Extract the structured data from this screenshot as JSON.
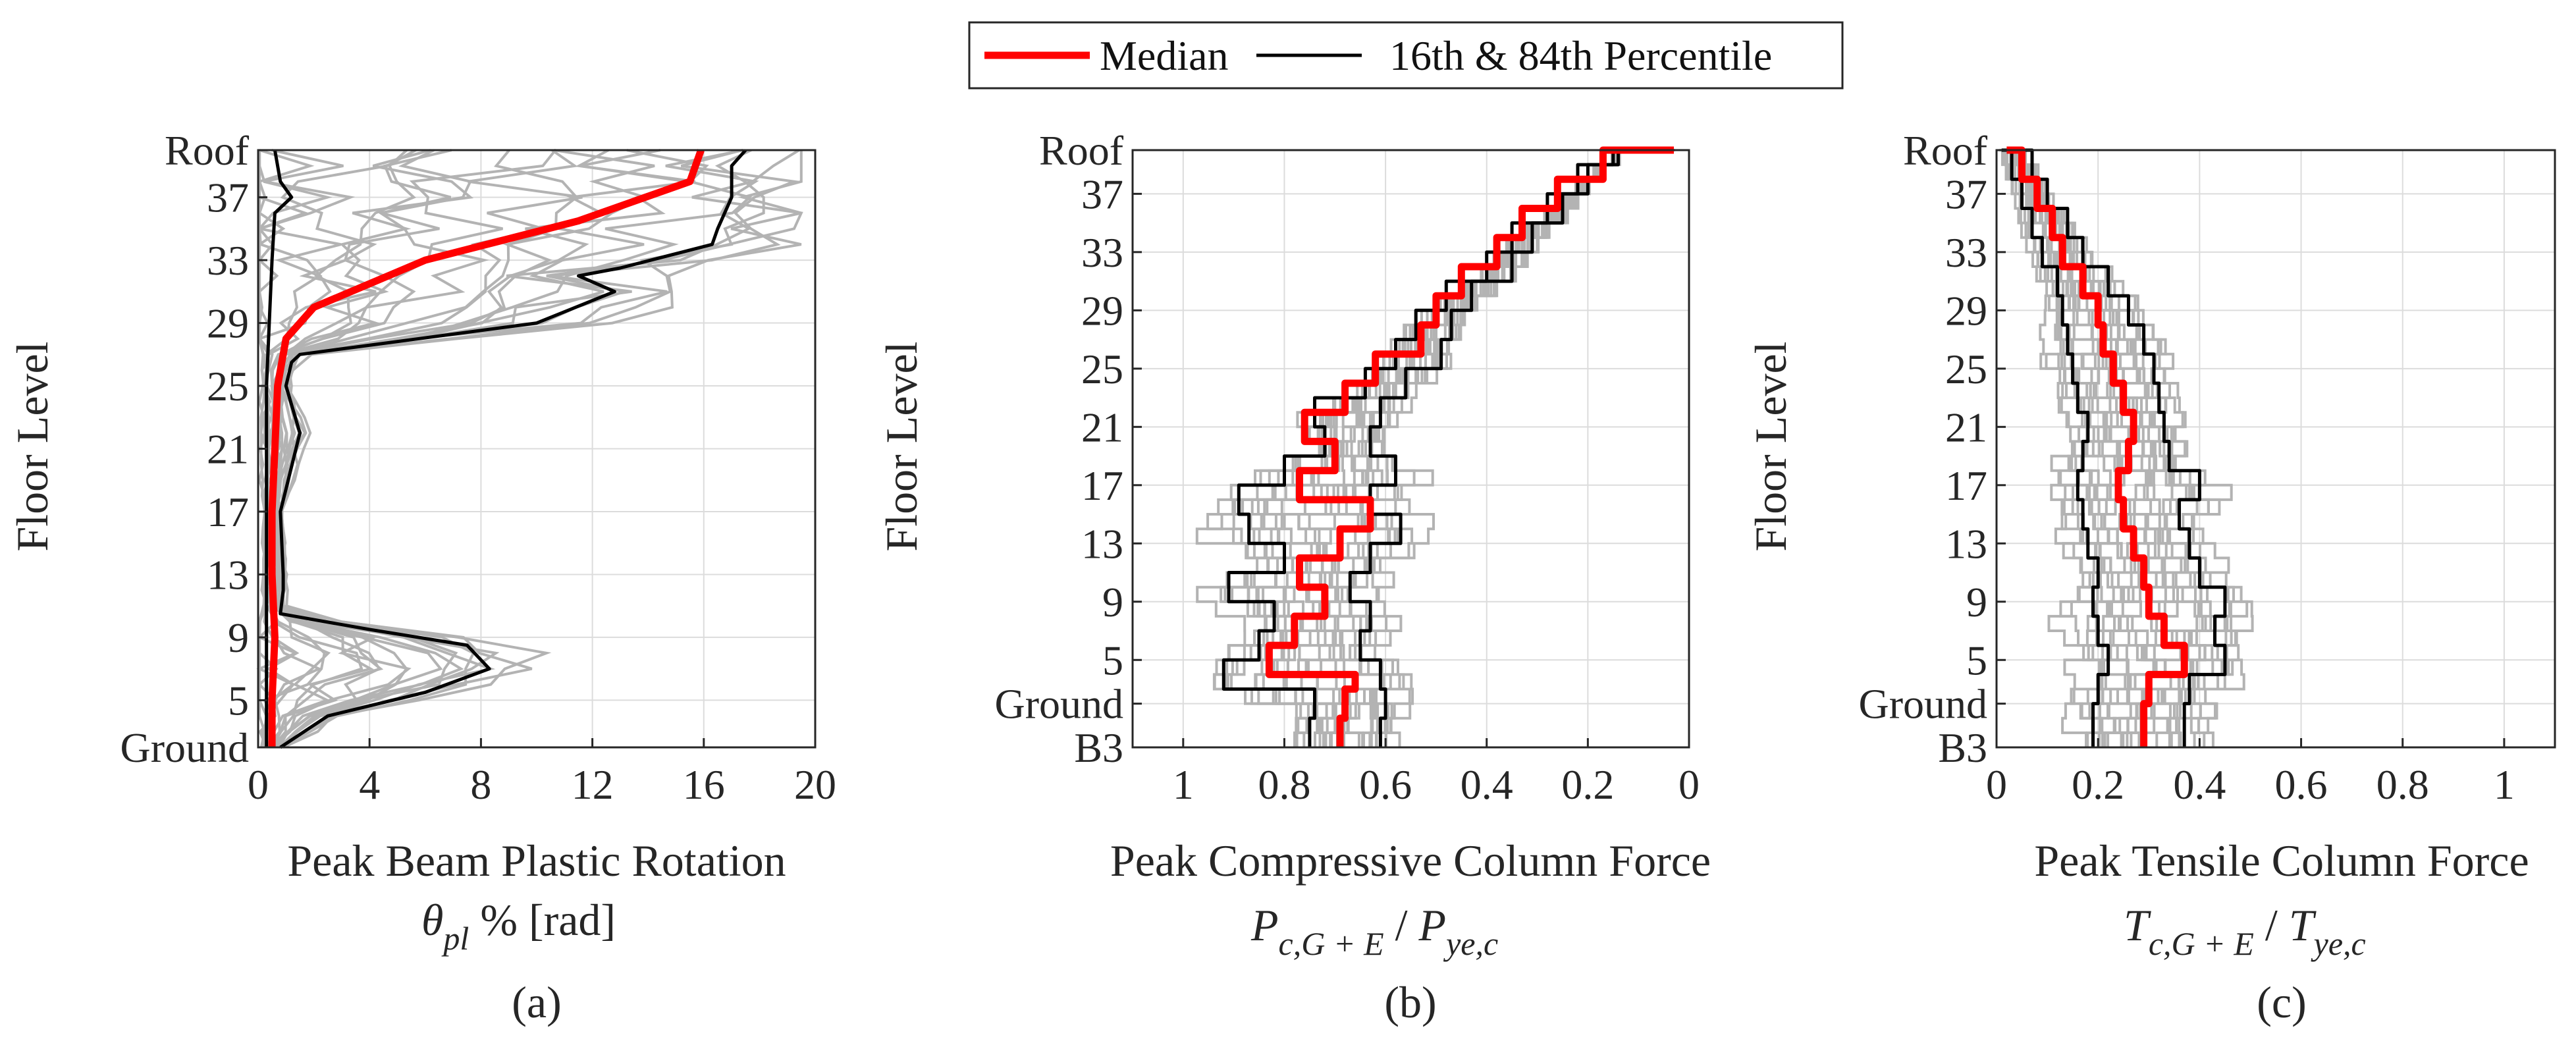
{
  "legend": {
    "median_label": "Median",
    "percentile_label": "16th & 84th Percentile"
  },
  "colors": {
    "median": "#ff0000",
    "percentile": "#000000",
    "records": "#b3b3b3",
    "grid": "#dcdcdc",
    "axes": "#262626"
  },
  "chart_data": [
    {
      "type": "line",
      "panel_label": "(a)",
      "xlabel": "Peak Beam Plastic Rotation",
      "xlabel_math": "θ pl % [rad]",
      "ylabel": "Floor Level",
      "xlim": [
        0,
        20
      ],
      "x_ticks": [
        0,
        4,
        8,
        12,
        16,
        20
      ],
      "x_tick_labels": [
        "0",
        "4",
        "8",
        "12",
        "16",
        "20"
      ],
      "ylim": [
        2,
        40
      ],
      "y_ticks": [
        2,
        5,
        9,
        13,
        17,
        21,
        25,
        29,
        33,
        37,
        40
      ],
      "y_tick_labels": [
        "Ground",
        "5",
        "9",
        "13",
        "17",
        "21",
        "25",
        "29",
        "33",
        "37",
        "Roof"
      ],
      "grid": true,
      "series": [
        {
          "name": "Median",
          "role": "median",
          "points": [
            [
              0.5,
              2
            ],
            [
              0.5,
              5
            ],
            [
              0.6,
              9
            ],
            [
              0.5,
              13
            ],
            [
              0.5,
              17
            ],
            [
              0.6,
              21
            ],
            [
              0.7,
              25
            ],
            [
              1.0,
              28
            ],
            [
              2.0,
              30
            ],
            [
              6.0,
              33
            ],
            [
              11.5,
              35.5
            ],
            [
              15.5,
              38
            ],
            [
              15.9,
              40
            ]
          ]
        },
        {
          "name": "16th & 84th Percentile",
          "role": "p16",
          "points": [
            [
              0.3,
              2
            ],
            [
              0.3,
              5
            ],
            [
              0.3,
              9
            ],
            [
              0.3,
              13
            ],
            [
              0.3,
              17
            ],
            [
              0.3,
              21
            ],
            [
              0.3,
              25
            ],
            [
              0.4,
              29
            ],
            [
              0.5,
              33
            ],
            [
              0.6,
              36
            ],
            [
              1.2,
              37
            ],
            [
              0.8,
              38
            ],
            [
              0.6,
              40
            ]
          ]
        },
        {
          "name": "16th & 84th Percentile",
          "role": "p84",
          "points": [
            [
              0.8,
              2
            ],
            [
              2.5,
              4
            ],
            [
              6.0,
              5.5
            ],
            [
              8.3,
              7
            ],
            [
              7.5,
              8.5
            ],
            [
              4.0,
              9.5
            ],
            [
              0.8,
              10.5
            ],
            [
              0.9,
              12
            ],
            [
              0.9,
              13
            ],
            [
              0.8,
              17
            ],
            [
              1.5,
              22
            ],
            [
              1.0,
              25
            ],
            [
              1.2,
              26.5
            ],
            [
              1.5,
              27
            ],
            [
              10.0,
              29
            ],
            [
              12.8,
              31
            ],
            [
              11.5,
              32
            ],
            [
              13.0,
              32.5
            ],
            [
              16.3,
              34
            ],
            [
              16.5,
              35
            ],
            [
              17.0,
              37
            ],
            [
              17.0,
              39
            ],
            [
              17.5,
              40
            ]
          ]
        }
      ]
    },
    {
      "type": "line",
      "panel_label": "(b)",
      "xlabel": "Peak Compressive Column Force",
      "xlabel_math": "P c,G + E / P ye,c",
      "ylabel": "Floor Level",
      "xlim": [
        1.1,
        0
      ],
      "x_ticks": [
        1,
        0.8,
        0.6,
        0.4,
        0.2,
        0
      ],
      "x_tick_labels": [
        "1",
        "0.8",
        "0.6",
        "0.4",
        "0.2",
        "0"
      ],
      "ylim": [
        -1,
        40
      ],
      "y_ticks": [
        -1,
        2,
        5,
        9,
        13,
        17,
        21,
        25,
        29,
        33,
        37,
        40
      ],
      "y_tick_labels": [
        "B3",
        "Ground",
        "5",
        "9",
        "13",
        "17",
        "21",
        "25",
        "29",
        "33",
        "37",
        "Roof"
      ],
      "grid": true,
      "series": [
        {
          "name": "Median",
          "role": "median",
          "points": [
            [
              0.69,
              -1
            ],
            [
              0.68,
              1
            ],
            [
              0.66,
              3
            ],
            [
              0.83,
              4
            ],
            [
              0.78,
              6
            ],
            [
              0.72,
              8
            ],
            [
              0.77,
              10
            ],
            [
              0.69,
              12
            ],
            [
              0.63,
              14
            ],
            [
              0.77,
              16
            ],
            [
              0.7,
              18
            ],
            [
              0.76,
              20
            ],
            [
              0.68,
              22
            ],
            [
              0.62,
              24
            ],
            [
              0.53,
              26
            ],
            [
              0.5,
              28
            ],
            [
              0.45,
              30
            ],
            [
              0.38,
              32
            ],
            [
              0.33,
              34
            ],
            [
              0.26,
              36
            ],
            [
              0.17,
              38
            ],
            [
              0.03,
              40
            ]
          ]
        },
        {
          "name": "16th & 84th Percentile",
          "role": "p16",
          "points": [
            [
              0.75,
              -1
            ],
            [
              0.74,
              1
            ],
            [
              0.92,
              3
            ],
            [
              0.85,
              5
            ],
            [
              0.82,
              7
            ],
            [
              0.91,
              9
            ],
            [
              0.8,
              11
            ],
            [
              0.87,
              13
            ],
            [
              0.89,
              15
            ],
            [
              0.8,
              17
            ],
            [
              0.72,
              19
            ],
            [
              0.74,
              21
            ],
            [
              0.64,
              23
            ],
            [
              0.58,
              25
            ],
            [
              0.54,
              27
            ],
            [
              0.48,
              29
            ],
            [
              0.4,
              31
            ],
            [
              0.35,
              33
            ],
            [
              0.28,
              35
            ],
            [
              0.22,
              37
            ],
            [
              0.15,
              39
            ],
            [
              0.04,
              40
            ]
          ]
        },
        {
          "name": "16th & 84th Percentile",
          "role": "p84",
          "points": [
            [
              0.61,
              -1
            ],
            [
              0.6,
              1
            ],
            [
              0.61,
              3
            ],
            [
              0.65,
              5
            ],
            [
              0.63,
              7
            ],
            [
              0.67,
              9
            ],
            [
              0.63,
              11
            ],
            [
              0.57,
              13
            ],
            [
              0.63,
              15
            ],
            [
              0.58,
              17
            ],
            [
              0.63,
              19
            ],
            [
              0.61,
              21
            ],
            [
              0.56,
              23
            ],
            [
              0.49,
              25
            ],
            [
              0.47,
              27
            ],
            [
              0.43,
              29
            ],
            [
              0.35,
              31
            ],
            [
              0.31,
              33
            ],
            [
              0.25,
              35
            ],
            [
              0.2,
              37
            ],
            [
              0.14,
              39
            ],
            [
              0.03,
              40
            ]
          ]
        }
      ]
    },
    {
      "type": "line",
      "panel_label": "(c)",
      "xlabel": "Peak Tensile Column Force",
      "xlabel_math": "T c,G + E / T ye,c",
      "ylabel": "Floor Level",
      "xlim": [
        0,
        1.1
      ],
      "x_ticks": [
        0,
        0.2,
        0.4,
        0.6,
        0.8,
        1
      ],
      "x_tick_labels": [
        "0",
        "0.2",
        "0.4",
        "0.6",
        "0.8",
        "1"
      ],
      "ylim": [
        -1,
        40
      ],
      "y_ticks": [
        -1,
        2,
        5,
        9,
        13,
        17,
        21,
        25,
        29,
        33,
        37,
        40
      ],
      "y_tick_labels": [
        "B3",
        "Ground",
        "5",
        "9",
        "13",
        "17",
        "21",
        "25",
        "29",
        "33",
        "37",
        "Roof"
      ],
      "grid": true,
      "series": [
        {
          "name": "Median",
          "role": "median",
          "points": [
            [
              0.29,
              -1
            ],
            [
              0.3,
              2
            ],
            [
              0.37,
              4
            ],
            [
              0.33,
              6
            ],
            [
              0.3,
              8
            ],
            [
              0.29,
              10
            ],
            [
              0.27,
              12
            ],
            [
              0.25,
              14
            ],
            [
              0.24,
              16
            ],
            [
              0.26,
              18
            ],
            [
              0.27,
              20
            ],
            [
              0.25,
              22
            ],
            [
              0.23,
              24
            ],
            [
              0.21,
              26
            ],
            [
              0.2,
              28
            ],
            [
              0.17,
              30
            ],
            [
              0.13,
              32
            ],
            [
              0.11,
              34
            ],
            [
              0.08,
              36
            ],
            [
              0.05,
              38
            ],
            [
              0.02,
              40
            ]
          ]
        },
        {
          "name": "16th & 84th Percentile",
          "role": "p16",
          "points": [
            [
              0.19,
              -1
            ],
            [
              0.2,
              2
            ],
            [
              0.22,
              4
            ],
            [
              0.2,
              6
            ],
            [
              0.19,
              8
            ],
            [
              0.2,
              10
            ],
            [
              0.18,
              12
            ],
            [
              0.17,
              14
            ],
            [
              0.16,
              16
            ],
            [
              0.17,
              18
            ],
            [
              0.18,
              20
            ],
            [
              0.16,
              22
            ],
            [
              0.15,
              24
            ],
            [
              0.14,
              26
            ],
            [
              0.13,
              28
            ],
            [
              0.12,
              30
            ],
            [
              0.09,
              32
            ],
            [
              0.07,
              34
            ],
            [
              0.05,
              36
            ],
            [
              0.03,
              38
            ],
            [
              0.01,
              40
            ]
          ]
        },
        {
          "name": "16th & 84th Percentile",
          "role": "p84",
          "points": [
            [
              0.37,
              -1
            ],
            [
              0.38,
              2
            ],
            [
              0.45,
              4
            ],
            [
              0.43,
              6
            ],
            [
              0.45,
              8
            ],
            [
              0.4,
              10
            ],
            [
              0.38,
              12
            ],
            [
              0.36,
              14
            ],
            [
              0.4,
              16
            ],
            [
              0.34,
              18
            ],
            [
              0.33,
              20
            ],
            [
              0.32,
              22
            ],
            [
              0.31,
              24
            ],
            [
              0.29,
              26
            ],
            [
              0.26,
              28
            ],
            [
              0.22,
              30
            ],
            [
              0.17,
              32
            ],
            [
              0.14,
              34
            ],
            [
              0.1,
              36
            ],
            [
              0.07,
              38
            ],
            [
              0.03,
              40
            ]
          ]
        }
      ]
    }
  ]
}
